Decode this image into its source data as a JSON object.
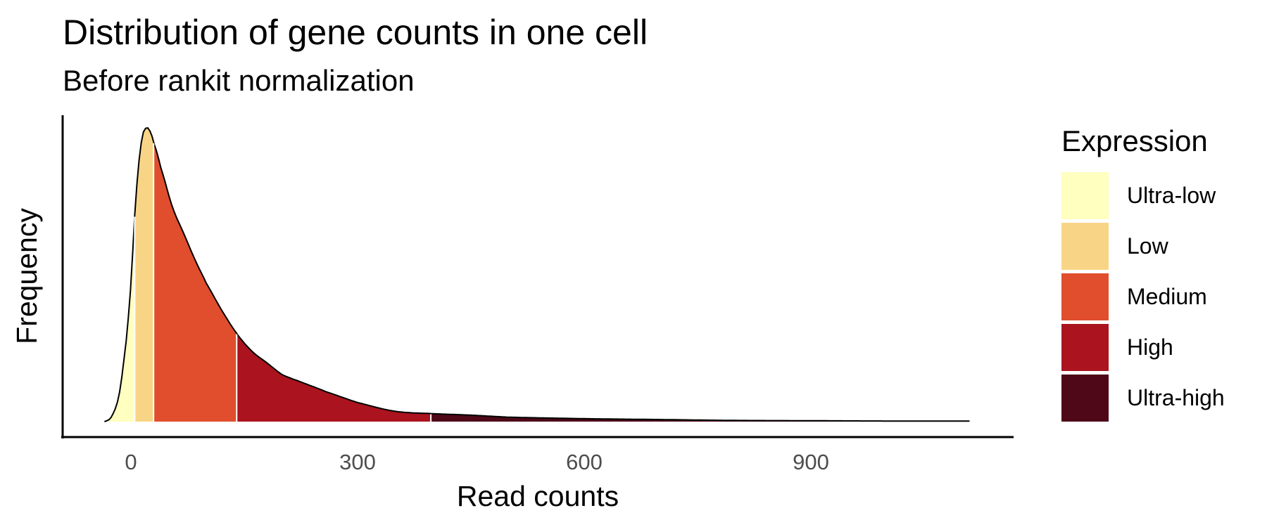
{
  "chart_data": {
    "type": "area",
    "title": "Distribution of gene counts in one cell",
    "subtitle": "Before rankit normalization",
    "xlabel": "Read counts",
    "ylabel": "Frequency",
    "xlim": [
      -35,
      1110
    ],
    "x_ticks": [
      0,
      300,
      600,
      900
    ],
    "x_tick_labels": [
      "0",
      "300",
      "600",
      "900"
    ],
    "grid": false,
    "legend": {
      "title": "Expression",
      "position": "right",
      "items": [
        {
          "label": "Ultra-low",
          "color": "#FFFFBF"
        },
        {
          "label": "Low",
          "color": "#F8D586"
        },
        {
          "label": "Medium",
          "color": "#E04E2E"
        },
        {
          "label": "High",
          "color": "#AB141E"
        },
        {
          "label": "Ultra-high",
          "color": "#4E0818"
        }
      ]
    },
    "category_boundaries": [
      -35,
      5,
      30,
      140,
      397,
      1110
    ],
    "density_curve": {
      "x": [
        -35,
        -25,
        -15,
        -5,
        0,
        5,
        10,
        15,
        20,
        25,
        30,
        40,
        55,
        70,
        85,
        100,
        120,
        140,
        160,
        180,
        200,
        230,
        260,
        300,
        350,
        400,
        450,
        500,
        600,
        700,
        800,
        900,
        1000,
        1110
      ],
      "y": [
        0.0,
        0.02,
        0.1,
        0.3,
        0.47,
        0.7,
        0.87,
        0.97,
        1.0,
        0.99,
        0.95,
        0.86,
        0.73,
        0.64,
        0.55,
        0.47,
        0.38,
        0.3,
        0.24,
        0.2,
        0.16,
        0.13,
        0.1,
        0.065,
        0.035,
        0.027,
        0.022,
        0.015,
        0.01,
        0.007,
        0.004,
        0.003,
        0.002,
        0.002
      ]
    }
  }
}
